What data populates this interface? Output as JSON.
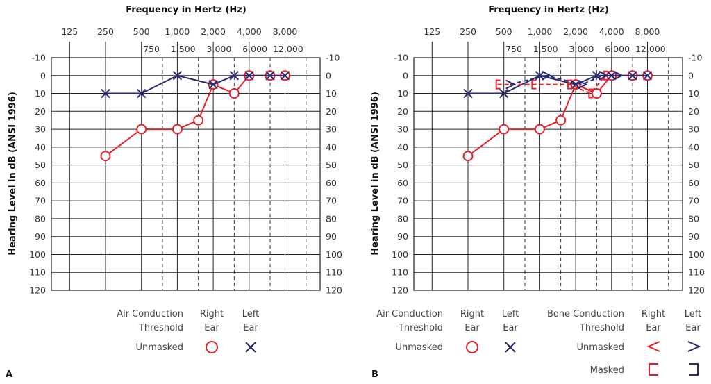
{
  "chart_data": [
    {
      "type": "line",
      "panel_label": "A",
      "title": "Frequency in Hertz (Hz)",
      "ylabel": "Hearing Level in dB (ANSI 1996)",
      "x_scale": "log2",
      "x_ticks_major": [
        125,
        250,
        500,
        1000,
        2000,
        4000,
        8000
      ],
      "x_tick_labels_major": [
        "125",
        "250",
        "500",
        "1,000",
        "2,000",
        "4,000",
        "8,000"
      ],
      "x_ticks_minor": [
        750,
        1500,
        3000,
        6000,
        12000
      ],
      "x_tick_labels_minor": [
        "750",
        "1,500",
        "3,000",
        "6,000",
        "12,000"
      ],
      "ylim": [
        -10,
        120
      ],
      "y_inverted": true,
      "y_ticks": [
        -10,
        0,
        10,
        20,
        30,
        40,
        50,
        60,
        70,
        80,
        90,
        100,
        110,
        120
      ],
      "grid": true,
      "series": [
        {
          "name": "Air Conduction Right Ear Unmasked",
          "symbol": "circle",
          "color": "#e8202a",
          "line": "solid",
          "x": [
            250,
            500,
            1000,
            1500,
            2000,
            3000,
            4000,
            6000,
            8000
          ],
          "y": [
            45,
            30,
            30,
            25,
            5,
            10,
            0,
            0,
            0
          ]
        },
        {
          "name": "Air Conduction Left Ear Unmasked",
          "symbol": "x",
          "color": "#2b2a6f",
          "line": "solid",
          "x": [
            250,
            500,
            1000,
            2000,
            3000,
            4000,
            6000,
            8000
          ],
          "y": [
            10,
            10,
            0,
            5,
            0,
            0,
            0,
            0
          ]
        }
      ],
      "legend": {
        "header": [
          "Air Conduction",
          "Threshold"
        ],
        "columns": [
          [
            "Right",
            "Ear"
          ],
          [
            "Left",
            "Ear"
          ]
        ],
        "rows": [
          {
            "label": "Unmasked",
            "symbols": [
              "circle",
              "x"
            ]
          }
        ]
      }
    },
    {
      "type": "line",
      "panel_label": "B",
      "title": "Frequency in Hertz (Hz)",
      "ylabel": "Hearing Level in dB (ANSI 1996)",
      "x_scale": "log2",
      "x_ticks_major": [
        125,
        250,
        500,
        1000,
        2000,
        4000,
        8000
      ],
      "x_tick_labels_major": [
        "125",
        "250",
        "500",
        "1,000",
        "2,000",
        "4,000",
        "8,000"
      ],
      "x_ticks_minor": [
        750,
        1500,
        3000,
        6000,
        12000
      ],
      "x_tick_labels_minor": [
        "750",
        "1,500",
        "3,000",
        "6,000",
        "12,000"
      ],
      "ylim": [
        -10,
        120
      ],
      "y_inverted": true,
      "y_ticks": [
        -10,
        0,
        10,
        20,
        30,
        40,
        50,
        60,
        70,
        80,
        90,
        100,
        110,
        120
      ],
      "grid": true,
      "series": [
        {
          "name": "Air Conduction Right Ear Unmasked",
          "symbol": "circle",
          "color": "#e8202a",
          "line": "solid",
          "x": [
            250,
            500,
            1000,
            1500,
            2000,
            3000,
            4000,
            6000,
            8000
          ],
          "y": [
            45,
            30,
            30,
            25,
            5,
            10,
            0,
            0,
            0
          ]
        },
        {
          "name": "Air Conduction Left Ear Unmasked",
          "symbol": "x",
          "color": "#2b2a6f",
          "line": "solid",
          "x": [
            250,
            500,
            1000,
            2000,
            3000,
            4000,
            6000,
            8000
          ],
          "y": [
            10,
            10,
            0,
            5,
            0,
            0,
            0,
            0
          ]
        },
        {
          "name": "Bone Conduction Right Ear Masked",
          "symbol": "bracket-left",
          "color": "#e8202a",
          "line": "dashed",
          "x": [
            500,
            1000,
            2000,
            3000,
            4000
          ],
          "y": [
            5,
            5,
            5,
            10,
            0
          ]
        },
        {
          "name": "Bone Conduction Left Ear Unmasked",
          "symbol": "angle-right",
          "color": "#2b2a6f",
          "line": "dashed",
          "x": [
            500,
            1000,
            2000,
            3000,
            4000
          ],
          "y": [
            5,
            0,
            5,
            0,
            0
          ]
        }
      ],
      "legend": {
        "air_header": [
          "Air Conduction",
          "Threshold"
        ],
        "air_columns": [
          [
            "Right",
            "Ear"
          ],
          [
            "Left",
            "Ear"
          ]
        ],
        "air_rows": [
          {
            "label": "Unmasked",
            "symbols": [
              "circle",
              "x"
            ]
          }
        ],
        "bone_header": [
          "Bone Conduction",
          "Threshold"
        ],
        "bone_columns": [
          [
            "Right",
            "Ear"
          ],
          [
            "Left",
            "Ear"
          ]
        ],
        "bone_rows": [
          {
            "label": "Unmasked",
            "symbols": [
              "angle-left",
              "angle-right"
            ]
          },
          {
            "label": "Masked",
            "symbols": [
              "bracket-left",
              "bracket-right"
            ]
          }
        ]
      }
    }
  ]
}
